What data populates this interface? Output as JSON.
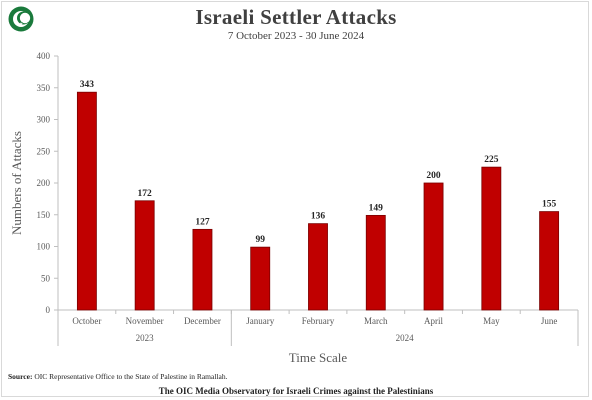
{
  "header": {
    "title": "Israeli Settler Attacks",
    "subtitle": "7 October 2023 - 30 June 2024"
  },
  "footer": {
    "source_label": "Source:",
    "source_text": "OIC Representative Office to the State of Palestine in Ramallah.",
    "credit": "The OIC Media Observatory for Israeli Crimes against the Palestinians"
  },
  "colors": {
    "bar": "#c00000",
    "bar_stroke": "#7a0000",
    "axis_text": "#595959",
    "grid": "#d9d9d9"
  },
  "chart_data": {
    "type": "bar",
    "title": "Israeli Settler Attacks",
    "subtitle": "7 October 2023 - 30 June 2024",
    "xlabel": "Time Scale",
    "ylabel": "Numbers of Attacks",
    "categories": [
      "October",
      "November",
      "December",
      "January",
      "February",
      "March",
      "April",
      "May",
      "June"
    ],
    "values": [
      343,
      172,
      127,
      99,
      136,
      149,
      200,
      225,
      155
    ],
    "year_groups": [
      {
        "label": "2023",
        "count": 3
      },
      {
        "label": "2024",
        "count": 6
      }
    ],
    "ylim": [
      0,
      400
    ],
    "yticks": [
      0,
      50,
      100,
      150,
      200,
      250,
      300,
      350,
      400
    ],
    "grid": false,
    "data_labels": true
  }
}
